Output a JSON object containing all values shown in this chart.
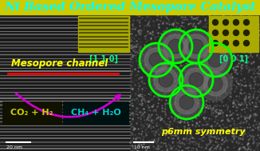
{
  "title": "Ni Based Ordered Mesopore Catalyst",
  "title_color": "#00FFFF",
  "title_bg": "#CCCC00",
  "title_fontsize": 11,
  "left_label": "Mesopore channel",
  "left_label_color": "#FFFF00",
  "reactant_text": "CO₂ + H₂",
  "product_text": "CH₄ + H₂O",
  "reactant_box_color": "#CCCC00",
  "product_box_color": "#00CCCC",
  "arrow_color": "#CC00CC",
  "red_line_color": "#FF0000",
  "green_circle_color": "#00FF00",
  "symmetry_text": "p6mm symmetry",
  "symmetry_color": "#FFFF00",
  "label_110": "[1 1 0]",
  "label_001": "[0 0 1]",
  "label_color_110": "#00FF88",
  "label_color_001": "#00FF88",
  "scale_left": "20 nm",
  "scale_right": "10 nm",
  "background_color": "#111111",
  "fig_width": 3.26,
  "fig_height": 1.89,
  "stripe_color": "#808080",
  "inset_bg": "#aaaa00",
  "inset_stripe_color": "#555500",
  "inset_dot_color": "#222200",
  "blob_color1": "#505050",
  "blob_color2": "#787878"
}
